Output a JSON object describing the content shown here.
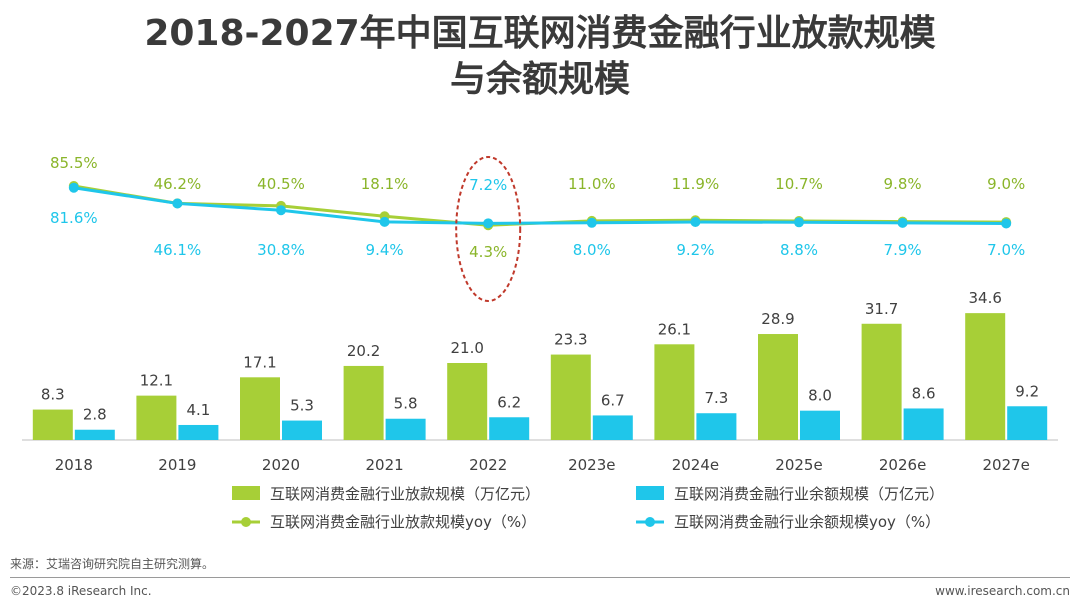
{
  "title_line1": "2018-2027年中国互联网消费金融行业放款规模",
  "title_line2": "与余额规模",
  "colors": {
    "green": "#a7cf37",
    "blue": "#1fc6ea",
    "highlight": "#c0392b"
  },
  "chart_data": {
    "type": "bar",
    "categories": [
      "2018",
      "2019",
      "2020",
      "2021",
      "2022",
      "2023e",
      "2024e",
      "2025e",
      "2026e",
      "2027e"
    ],
    "series": [
      {
        "name": "互联网消费金融行业放款规模（万亿元）",
        "type": "bar",
        "values": [
          8.3,
          12.1,
          17.1,
          20.2,
          21.0,
          23.3,
          26.1,
          28.9,
          31.7,
          34.6
        ],
        "labels": [
          "8.3",
          "12.1",
          "17.1",
          "20.2",
          "21.0",
          "23.3",
          "26.1",
          "28.9",
          "31.7",
          "34.6"
        ]
      },
      {
        "name": "互联网消费金融行业余额规模（万亿元）",
        "type": "bar",
        "values": [
          2.8,
          4.1,
          5.3,
          5.8,
          6.2,
          6.7,
          7.3,
          8.0,
          8.6,
          9.2
        ],
        "labels": [
          "2.8",
          "4.1",
          "5.3",
          "5.8",
          "6.2",
          "6.7",
          "7.3",
          "8.0",
          "8.6",
          "9.2"
        ]
      },
      {
        "name": "互联网消费金融行业放款规模yoy（%）",
        "type": "line",
        "values": [
          85.5,
          46.2,
          40.5,
          18.1,
          4.3,
          11.0,
          11.9,
          10.7,
          9.8,
          9.0
        ],
        "labels": [
          "85.5%",
          "46.2%",
          "40.5%",
          "18.1%",
          "4.3%",
          "11.0%",
          "11.9%",
          "10.7%",
          "9.8%",
          "9.0%"
        ]
      },
      {
        "name": "互联网消费金融行业余额规模yoy（%）",
        "type": "line",
        "values": [
          81.6,
          46.1,
          30.8,
          9.4,
          7.2,
          8.0,
          9.2,
          8.8,
          7.9,
          7.0
        ],
        "labels": [
          "81.6%",
          "46.1%",
          "30.8%",
          "9.4%",
          "7.2%",
          "8.0%",
          "9.2%",
          "8.8%",
          "7.9%",
          "7.0%"
        ]
      }
    ],
    "bar_ylim": [
      0,
      36
    ],
    "line_ylim": [
      0,
      90
    ],
    "highlighted_category": "2022",
    "legend_position": "bottom"
  },
  "source": "来源：艾瑞咨询研究院自主研究测算。",
  "copyright": "©2023.8 iResearch Inc.",
  "website": "www.iresearch.com.cn"
}
